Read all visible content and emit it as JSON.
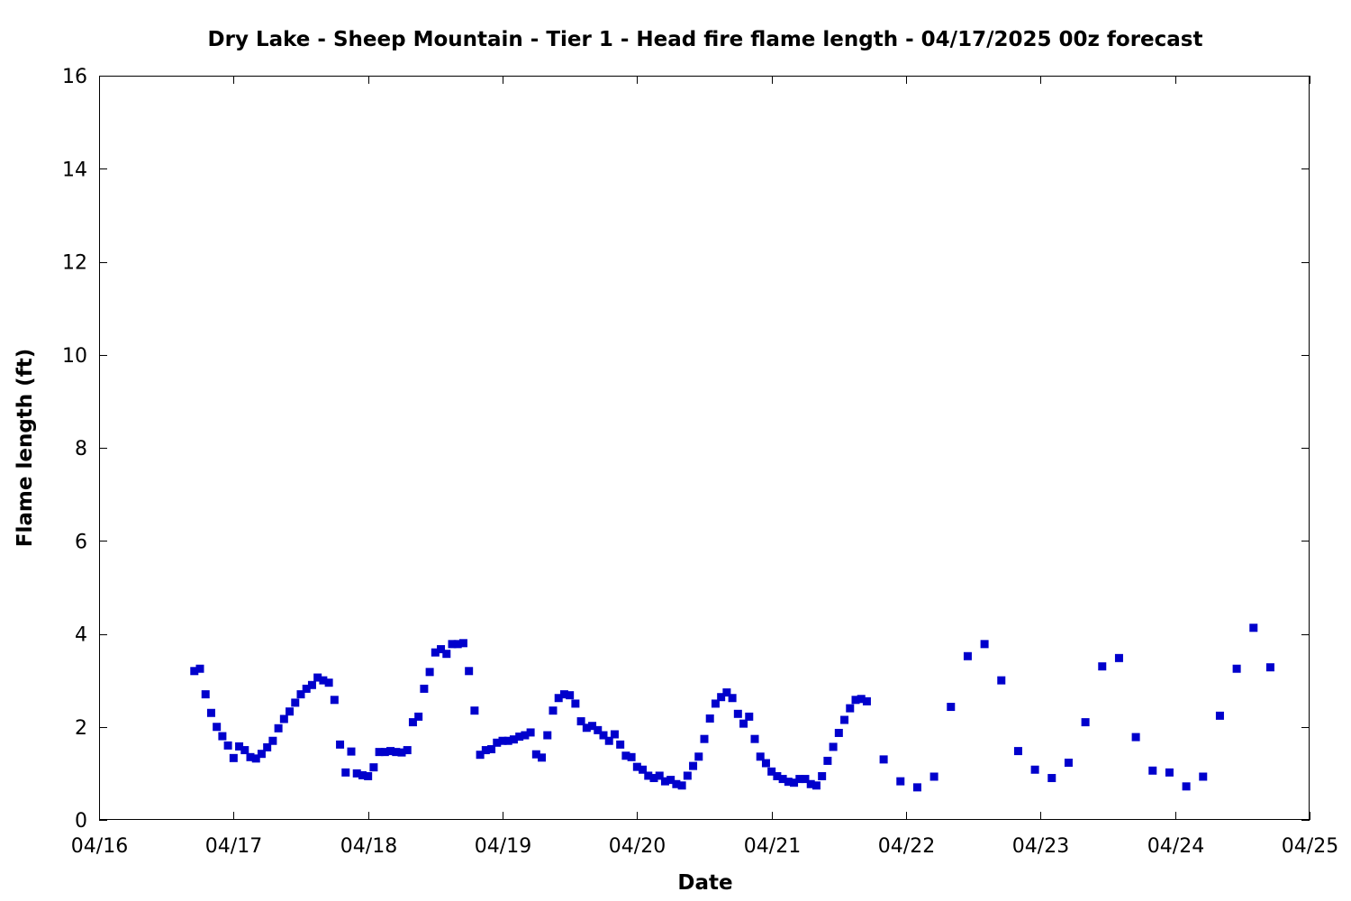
{
  "chart_data": {
    "type": "scatter",
    "title": "Dry Lake - Sheep Mountain - Tier 1 - Head fire flame length - 04/17/2025 00z forecast",
    "xlabel": "Date",
    "ylabel": "Flame length (ft)",
    "x_axis": {
      "type": "date",
      "start": "04/16",
      "end": "04/25",
      "tick_labels": [
        "04/16",
        "04/17",
        "04/18",
        "04/19",
        "04/20",
        "04/21",
        "04/22",
        "04/23",
        "04/24",
        "04/25"
      ]
    },
    "ylim": [
      0,
      16
    ],
    "y_ticks": [
      0,
      2,
      4,
      6,
      8,
      10,
      12,
      14,
      16
    ],
    "grid": false,
    "point_color": "#0000cc",
    "series": [
      {
        "name": "",
        "points": [
          [
            "04/16 17:00",
            3.2
          ],
          [
            "04/16 18:00",
            3.25
          ],
          [
            "04/16 19:00",
            2.7
          ],
          [
            "04/16 20:00",
            2.3
          ],
          [
            "04/16 21:00",
            2.0
          ],
          [
            "04/16 22:00",
            1.8
          ],
          [
            "04/16 23:00",
            1.6
          ],
          [
            "04/17 00:00",
            1.33
          ],
          [
            "04/17 01:00",
            1.58
          ],
          [
            "04/17 02:00",
            1.5
          ],
          [
            "04/17 03:00",
            1.35
          ],
          [
            "04/17 04:00",
            1.32
          ],
          [
            "04/17 05:00",
            1.42
          ],
          [
            "04/17 06:00",
            1.56
          ],
          [
            "04/17 07:00",
            1.7
          ],
          [
            "04/17 08:00",
            1.97
          ],
          [
            "04/17 09:00",
            2.17
          ],
          [
            "04/17 10:00",
            2.33
          ],
          [
            "04/17 11:00",
            2.52
          ],
          [
            "04/17 12:00",
            2.7
          ],
          [
            "04/17 13:00",
            2.82
          ],
          [
            "04/17 14:00",
            2.9
          ],
          [
            "04/17 15:00",
            3.06
          ],
          [
            "04/17 16:00",
            3.0
          ],
          [
            "04/17 17:00",
            2.95
          ],
          [
            "04/17 18:00",
            2.58
          ],
          [
            "04/17 19:00",
            1.62
          ],
          [
            "04/17 20:00",
            1.02
          ],
          [
            "04/17 21:00",
            1.47
          ],
          [
            "04/17 22:00",
            1.0
          ],
          [
            "04/17 23:00",
            0.96
          ],
          [
            "04/18 00:00",
            0.94
          ],
          [
            "04/18 01:00",
            1.13
          ],
          [
            "04/18 02:00",
            1.46
          ],
          [
            "04/18 03:00",
            1.46
          ],
          [
            "04/18 04:00",
            1.48
          ],
          [
            "04/18 05:00",
            1.46
          ],
          [
            "04/18 06:00",
            1.45
          ],
          [
            "04/18 07:00",
            1.5
          ],
          [
            "04/18 08:00",
            2.1
          ],
          [
            "04/18 09:00",
            2.22
          ],
          [
            "04/18 10:00",
            2.82
          ],
          [
            "04/18 11:00",
            3.18
          ],
          [
            "04/18 12:00",
            3.6
          ],
          [
            "04/18 13:00",
            3.67
          ],
          [
            "04/18 14:00",
            3.57
          ],
          [
            "04/18 15:00",
            3.78
          ],
          [
            "04/18 16:00",
            3.78
          ],
          [
            "04/18 17:00",
            3.8
          ],
          [
            "04/18 18:00",
            3.2
          ],
          [
            "04/18 19:00",
            2.35
          ],
          [
            "04/18 20:00",
            1.4
          ],
          [
            "04/18 21:00",
            1.5
          ],
          [
            "04/18 22:00",
            1.52
          ],
          [
            "04/18 23:00",
            1.66
          ],
          [
            "04/19 00:00",
            1.7
          ],
          [
            "04/19 01:00",
            1.7
          ],
          [
            "04/19 02:00",
            1.73
          ],
          [
            "04/19 03:00",
            1.79
          ],
          [
            "04/19 04:00",
            1.82
          ],
          [
            "04/19 05:00",
            1.88
          ],
          [
            "04/19 06:00",
            1.41
          ],
          [
            "04/19 07:00",
            1.34
          ],
          [
            "04/19 08:00",
            1.82
          ],
          [
            "04/19 09:00",
            2.35
          ],
          [
            "04/19 10:00",
            2.62
          ],
          [
            "04/19 11:00",
            2.7
          ],
          [
            "04/19 12:00",
            2.68
          ],
          [
            "04/19 13:00",
            2.5
          ],
          [
            "04/19 14:00",
            2.12
          ],
          [
            "04/19 15:00",
            1.98
          ],
          [
            "04/19 16:00",
            2.02
          ],
          [
            "04/19 17:00",
            1.93
          ],
          [
            "04/19 18:00",
            1.82
          ],
          [
            "04/19 19:00",
            1.7
          ],
          [
            "04/19 20:00",
            1.84
          ],
          [
            "04/19 21:00",
            1.62
          ],
          [
            "04/19 22:00",
            1.38
          ],
          [
            "04/19 23:00",
            1.35
          ],
          [
            "04/20 00:00",
            1.14
          ],
          [
            "04/20 01:00",
            1.08
          ],
          [
            "04/20 02:00",
            0.95
          ],
          [
            "04/20 03:00",
            0.9
          ],
          [
            "04/20 04:00",
            0.95
          ],
          [
            "04/20 05:00",
            0.83
          ],
          [
            "04/20 06:00",
            0.86
          ],
          [
            "04/20 07:00",
            0.77
          ],
          [
            "04/20 08:00",
            0.74
          ],
          [
            "04/20 09:00",
            0.95
          ],
          [
            "04/20 10:00",
            1.16
          ],
          [
            "04/20 11:00",
            1.36
          ],
          [
            "04/20 12:00",
            1.74
          ],
          [
            "04/20 13:00",
            2.18
          ],
          [
            "04/20 14:00",
            2.5
          ],
          [
            "04/20 15:00",
            2.64
          ],
          [
            "04/20 16:00",
            2.74
          ],
          [
            "04/20 17:00",
            2.62
          ],
          [
            "04/20 18:00",
            2.28
          ],
          [
            "04/20 19:00",
            2.07
          ],
          [
            "04/20 20:00",
            2.22
          ],
          [
            "04/20 21:00",
            1.74
          ],
          [
            "04/20 22:00",
            1.36
          ],
          [
            "04/20 23:00",
            1.22
          ],
          [
            "04/21 00:00",
            1.04
          ],
          [
            "04/21 01:00",
            0.94
          ],
          [
            "04/21 02:00",
            0.88
          ],
          [
            "04/21 03:00",
            0.82
          ],
          [
            "04/21 04:00",
            0.8
          ],
          [
            "04/21 05:00",
            0.88
          ],
          [
            "04/21 06:00",
            0.88
          ],
          [
            "04/21 07:00",
            0.77
          ],
          [
            "04/21 08:00",
            0.74
          ],
          [
            "04/21 09:00",
            0.94
          ],
          [
            "04/21 10:00",
            1.27
          ],
          [
            "04/21 11:00",
            1.57
          ],
          [
            "04/21 12:00",
            1.87
          ],
          [
            "04/21 13:00",
            2.15
          ],
          [
            "04/21 14:00",
            2.4
          ],
          [
            "04/21 15:00",
            2.58
          ],
          [
            "04/21 16:00",
            2.6
          ],
          [
            "04/21 17:00",
            2.55
          ],
          [
            "04/21 20:00",
            1.3
          ],
          [
            "04/21 23:00",
            0.83
          ],
          [
            "04/22 02:00",
            0.7
          ],
          [
            "04/22 05:00",
            0.93
          ],
          [
            "04/22 08:00",
            2.43
          ],
          [
            "04/22 11:00",
            3.52
          ],
          [
            "04/22 14:00",
            3.78
          ],
          [
            "04/22 17:00",
            3.0
          ],
          [
            "04/22 20:00",
            1.48
          ],
          [
            "04/22 23:00",
            1.08
          ],
          [
            "04/23 02:00",
            0.9
          ],
          [
            "04/23 05:00",
            1.23
          ],
          [
            "04/23 08:00",
            2.1
          ],
          [
            "04/23 11:00",
            3.3
          ],
          [
            "04/23 14:00",
            3.48
          ],
          [
            "04/23 17:00",
            1.78
          ],
          [
            "04/23 20:00",
            1.06
          ],
          [
            "04/23 23:00",
            1.02
          ],
          [
            "04/24 02:00",
            0.72
          ],
          [
            "04/24 05:00",
            0.93
          ],
          [
            "04/24 08:00",
            2.24
          ],
          [
            "04/24 11:00",
            3.25
          ],
          [
            "04/24 14:00",
            4.13
          ],
          [
            "04/24 17:00",
            3.28
          ]
        ]
      }
    ]
  }
}
